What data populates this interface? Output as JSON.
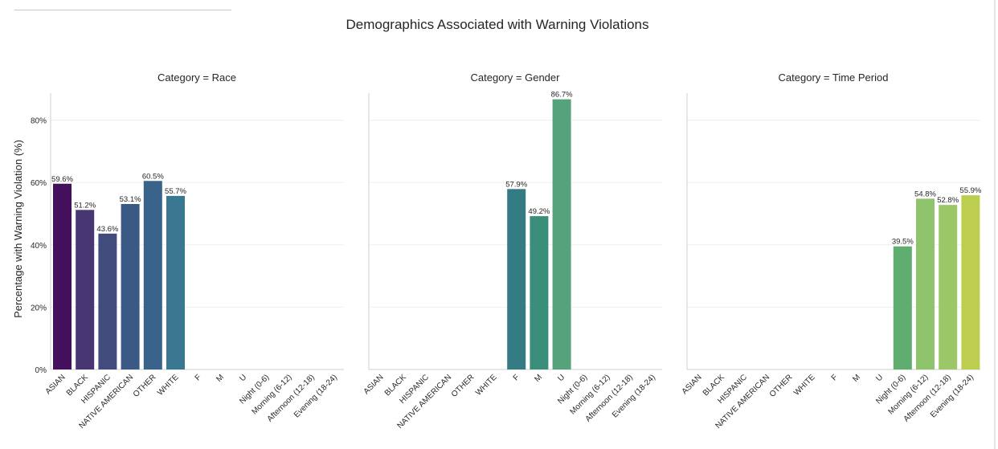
{
  "chart_data": {
    "type": "bar",
    "title": "Demographics Associated with Warning Violations",
    "ylabel": "Percentage with Warning Violation (%)",
    "ylim": [
      0,
      90
    ],
    "yticks": [
      "0%",
      "20%",
      "40%",
      "60%",
      "80%"
    ],
    "grid": "horizontal",
    "categories": [
      "ASIAN",
      "BLACK",
      "HISPANIC",
      "NATIVE AMERICAN",
      "OTHER",
      "WHITE",
      "F",
      "M",
      "U",
      "Night (0-6)",
      "Morning (6-12)",
      "Afternoon (12-18)",
      "Evening (18-24)"
    ],
    "colors": [
      "#440f5c",
      "#473672",
      "#414c7d",
      "#3a5a85",
      "#39638a",
      "#3a7790",
      "#357b84",
      "#3b8e7a",
      "#55a27c",
      "#5fae70",
      "#8fc36c",
      "#9cc767",
      "#bdcd4f"
    ],
    "panels": [
      {
        "title": "Category = Race",
        "values": [
          59.6,
          51.2,
          43.6,
          53.1,
          60.5,
          55.7,
          null,
          null,
          null,
          null,
          null,
          null,
          null
        ],
        "labels": [
          "59.6%",
          "51.2%",
          "43.6%",
          "53.1%",
          "60.5%",
          "55.7%",
          "",
          "",
          "",
          "",
          "",
          "",
          ""
        ]
      },
      {
        "title": "Category = Gender",
        "values": [
          null,
          null,
          null,
          null,
          null,
          null,
          57.9,
          49.2,
          86.7,
          null,
          null,
          null,
          null
        ],
        "labels": [
          "",
          "",
          "",
          "",
          "",
          "",
          "57.9%",
          "49.2%",
          "86.7%",
          "",
          "",
          "",
          ""
        ]
      },
      {
        "title": "Category = Time Period",
        "values": [
          null,
          null,
          null,
          null,
          null,
          null,
          null,
          null,
          null,
          39.5,
          54.8,
          52.8,
          55.9
        ],
        "labels": [
          "",
          "",
          "",
          "",
          "",
          "",
          "",
          "",
          "",
          "39.5%",
          "54.8%",
          "52.8%",
          "55.9%"
        ]
      }
    ]
  }
}
